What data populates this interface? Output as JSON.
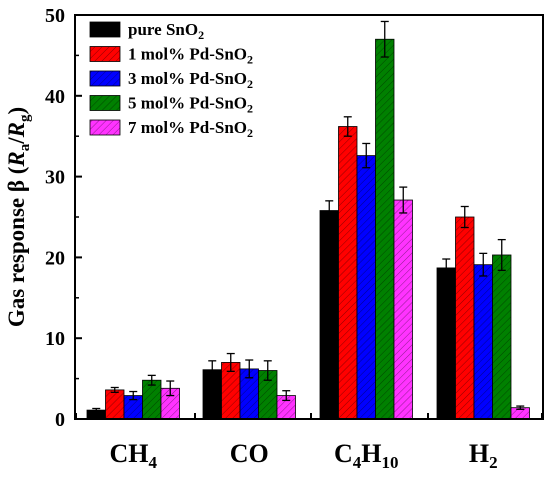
{
  "chart_data": {
    "type": "bar",
    "categories": [
      "CH4",
      "CO",
      "C4H10",
      "H2"
    ],
    "category_labels": [
      {
        "base": "CH",
        "sub1": "4",
        "mid": "",
        "sub2": ""
      },
      {
        "base": "CO",
        "sub1": "",
        "mid": "",
        "sub2": ""
      },
      {
        "base": "C",
        "sub1": "4",
        "mid": "H",
        "sub2": "10"
      },
      {
        "base": "H",
        "sub1": "2",
        "mid": "",
        "sub2": ""
      }
    ],
    "series": [
      {
        "name": "pure SnO2",
        "label_main": "pure SnO",
        "label_sub": "2",
        "color": "#000000",
        "hatch": false,
        "values": [
          1.1,
          6.1,
          25.8,
          18.7
        ],
        "errors": [
          0.2,
          1.1,
          1.2,
          1.1
        ]
      },
      {
        "name": "1 mol% Pd-SnO2",
        "label_main": "1 mol% Pd-SnO",
        "label_sub": "2",
        "color": "#ff0000",
        "hatch": true,
        "values": [
          3.6,
          7.0,
          36.2,
          25.0
        ],
        "errors": [
          0.3,
          1.1,
          1.2,
          1.3
        ]
      },
      {
        "name": "3 mol% Pd-SnO2",
        "label_main": "3 mol% Pd-SnO",
        "label_sub": "2",
        "color": "#0000ff",
        "hatch": true,
        "values": [
          2.9,
          6.2,
          32.6,
          19.1
        ],
        "errors": [
          0.5,
          1.1,
          1.5,
          1.4
        ]
      },
      {
        "name": "5 mol% Pd-SnO2",
        "label_main": "5 mol% Pd-SnO",
        "label_sub": "2",
        "color": "#008000",
        "hatch": true,
        "values": [
          4.8,
          6.0,
          47.0,
          20.3
        ],
        "errors": [
          0.6,
          1.2,
          2.2,
          1.9
        ]
      },
      {
        "name": "7 mol% Pd-SnO2",
        "label_main": "7 mol% Pd-SnO",
        "label_sub": "2",
        "color": "#ff33ff",
        "hatch": true,
        "values": [
          3.8,
          2.9,
          27.1,
          1.4
        ],
        "errors": [
          0.9,
          0.6,
          1.6,
          0.2
        ]
      }
    ],
    "ylabel": {
      "prefix": "Gas response β  (",
      "r": "R",
      "a": "a",
      "slash": "/",
      "r2": "R",
      "g": "g",
      "suffix": ")"
    },
    "ylim": [
      0,
      50
    ],
    "yticks": [
      0,
      10,
      20,
      30,
      40,
      50
    ],
    "legend_position": "top-left"
  }
}
